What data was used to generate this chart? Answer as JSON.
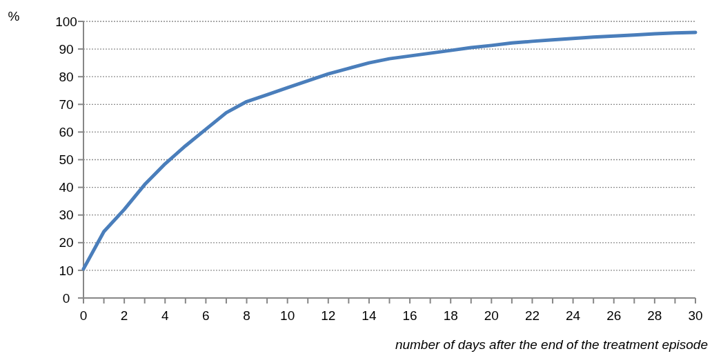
{
  "chart_data": {
    "type": "line",
    "xlabel": "number of days after the end of the treatment episode",
    "ylabel": "%",
    "x": [
      0,
      1,
      2,
      3,
      4,
      5,
      6,
      7,
      8,
      9,
      10,
      11,
      12,
      13,
      14,
      15,
      16,
      17,
      18,
      19,
      20,
      21,
      22,
      23,
      24,
      25,
      26,
      27,
      28,
      29,
      30
    ],
    "series": [
      {
        "color": "#4a7ebb",
        "values": [
          10.5,
          24,
          32,
          41,
          48.5,
          55,
          61,
          67,
          71,
          73.5,
          76,
          78.5,
          81,
          83,
          85,
          86.5,
          87.5,
          88.5,
          89.5,
          90.5,
          91.3,
          92.2,
          92.8,
          93.3,
          93.8,
          94.3,
          94.7,
          95.1,
          95.5,
          95.8,
          96
        ]
      }
    ],
    "xlim": [
      0,
      30
    ],
    "xticks": [
      0,
      {
        "value": 1,
        "label": null
      },
      2,
      {
        "value": 3,
        "label": null
      },
      4,
      {
        "value": 5,
        "label": null
      },
      6,
      {
        "value": 7,
        "label": null
      },
      8,
      {
        "value": 9,
        "label": null
      },
      10,
      {
        "value": 11,
        "label": null
      },
      12,
      {
        "value": 13,
        "label": null
      },
      14,
      {
        "value": 15,
        "label": null
      },
      16,
      {
        "value": 17,
        "label": null
      },
      18,
      {
        "value": 19,
        "label": null
      },
      20,
      {
        "value": 21,
        "label": null
      },
      22,
      {
        "value": 23,
        "label": null
      },
      24,
      {
        "value": 25,
        "label": null
      },
      26,
      {
        "value": 27,
        "label": null
      },
      28,
      {
        "value": 29,
        "label": null
      },
      30
    ],
    "ylim": [
      0,
      100
    ],
    "yticks": [
      0,
      10,
      20,
      30,
      40,
      50,
      60,
      70,
      80,
      90,
      100
    ],
    "grid": "y",
    "line_style": "solid",
    "marker": "none"
  }
}
